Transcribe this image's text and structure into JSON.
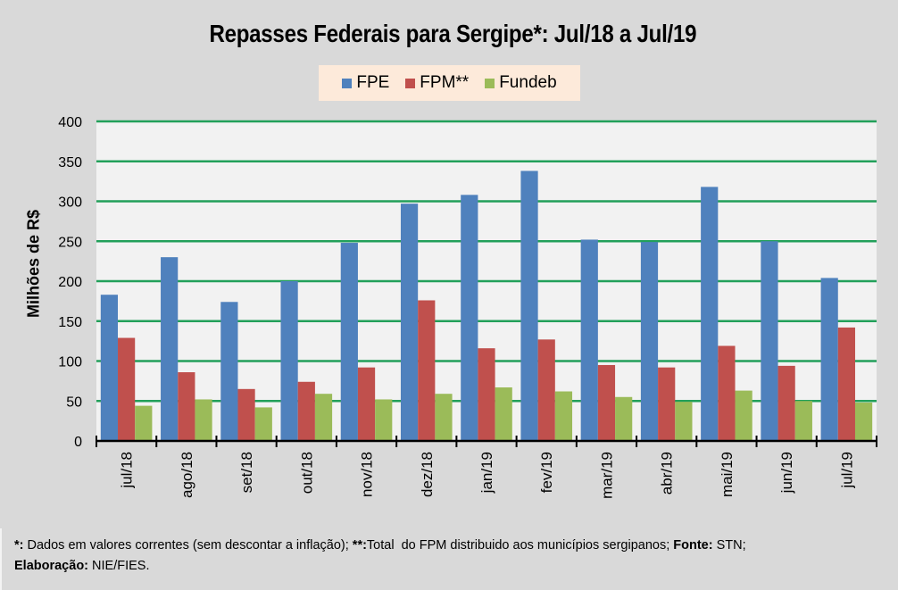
{
  "chart_data": {
    "type": "bar",
    "title": "Repasses Federais para Sergipe*: Jul/18 a Jul/19",
    "xlabel": "",
    "ylabel": "Milhões de R$",
    "ylim": [
      0,
      400
    ],
    "yticks": [
      0,
      50,
      100,
      150,
      200,
      250,
      300,
      350,
      400
    ],
    "ytick_labels": [
      "0",
      "50",
      "100",
      "150",
      "200",
      "250",
      "300",
      "350",
      "400"
    ],
    "grid": true,
    "legend_position": "top-center",
    "categories": [
      "jul/18",
      "ago/18",
      "set/18",
      "out/18",
      "nov/18",
      "dez/18",
      "jan/19",
      "fev/19",
      "mar/19",
      "abr/19",
      "mai/19",
      "jun/19",
      "jul/19"
    ],
    "series": [
      {
        "name": "FPE",
        "color": "#4f81bd",
        "values": [
          183,
          230,
          174,
          200,
          248,
          297,
          308,
          338,
          252,
          249,
          318,
          250,
          204
        ]
      },
      {
        "name": "FPM**",
        "color": "#c0504d",
        "values": [
          129,
          86,
          65,
          74,
          92,
          176,
          116,
          127,
          95,
          92,
          119,
          94,
          142
        ]
      },
      {
        "name": "Fundeb",
        "color": "#9bbb59",
        "values": [
          44,
          52,
          42,
          59,
          52,
          59,
          67,
          62,
          55,
          49,
          63,
          50,
          48
        ]
      }
    ]
  },
  "colors": {
    "background": "#d9d9d9",
    "plot_background": "#f2f2f2",
    "gridline": "#22a05a",
    "legend_background": "#fdeada"
  },
  "footnote": {
    "line1_parts": [
      {
        "text": "*:",
        "bold": true
      },
      {
        "text": " Dados em valores correntes (sem descontar a inflação); ",
        "bold": false
      },
      {
        "text": "**:",
        "bold": true
      },
      {
        "text": "Total  do FPM distribuido aos municípios sergipanos; ",
        "bold": false
      },
      {
        "text": "Fonte:",
        "bold": true
      },
      {
        "text": " STN;",
        "bold": false
      }
    ],
    "line2_parts": [
      {
        "text": "Elaboração:",
        "bold": true
      },
      {
        "text": " NIE/FIES.",
        "bold": false
      }
    ]
  }
}
